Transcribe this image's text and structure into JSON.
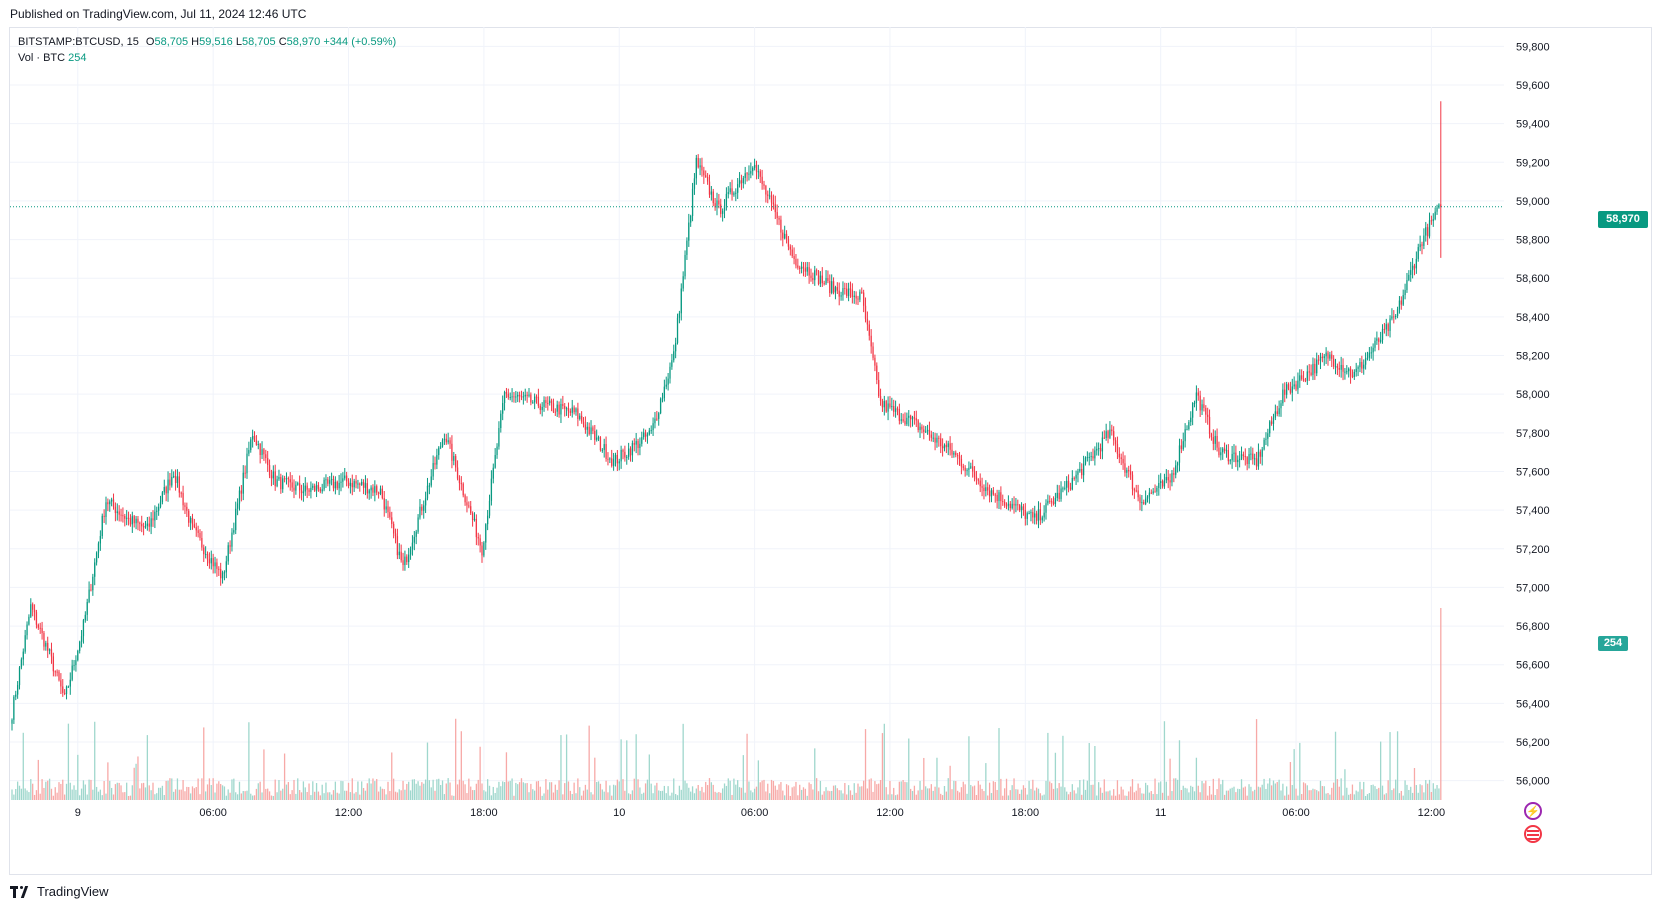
{
  "header": {
    "published": "Published on TradingView.com, Jul 11, 2024 12:46 UTC"
  },
  "legend": {
    "symbol": "BITSTAMP:BTCUSD, 15",
    "open_key": "O",
    "open": "58,705",
    "high_key": "H",
    "high": "59,516",
    "low_key": "L",
    "low": "58,705",
    "close_key": "C",
    "close": "58,970",
    "change": "+344 (+0.59%)",
    "vol_label": "Vol · BTC",
    "vol_value": "254"
  },
  "last_price_label": "58,970",
  "last_volume_label": "254",
  "footer": {
    "brand": "TradingView"
  },
  "icons": {
    "flash": "flash-icon",
    "flag": "us-flag-icon"
  },
  "colors": {
    "up": "#089981",
    "down": "#f23645",
    "vol_up": "#9fd7cd",
    "vol_down": "#f7a9a7",
    "grid": "#f0f3fa"
  },
  "chart_data": {
    "type": "candlestick",
    "title": "BITSTAMP:BTCUSD, 15",
    "y_axis": {
      "min": 55900,
      "max": 59900,
      "ticks": [
        56000,
        56200,
        56400,
        56600,
        56800,
        57000,
        57200,
        57400,
        57600,
        57800,
        58000,
        58200,
        58400,
        58600,
        58800,
        59000,
        59200,
        59400,
        59600,
        59800
      ]
    },
    "x_ticks": [
      "9",
      "06:00",
      "12:00",
      "18:00",
      "10",
      "06:00",
      "12:00",
      "18:00",
      "11",
      "06:00",
      "12:00"
    ],
    "last_close": 58970,
    "series": [
      {
        "name": "BITSTAMP:BTCUSD",
        "interval": "15",
        "anchors": [
          [
            0,
            56350
          ],
          [
            10,
            56900
          ],
          [
            20,
            56650
          ],
          [
            28,
            56420
          ],
          [
            38,
            56800
          ],
          [
            50,
            57450
          ],
          [
            62,
            57350
          ],
          [
            72,
            57300
          ],
          [
            86,
            57600
          ],
          [
            96,
            57300
          ],
          [
            112,
            57050
          ],
          [
            128,
            57800
          ],
          [
            140,
            57550
          ],
          [
            156,
            57500
          ],
          [
            178,
            57550
          ],
          [
            196,
            57500
          ],
          [
            208,
            57100
          ],
          [
            230,
            57800
          ],
          [
            250,
            57200
          ],
          [
            262,
            58000
          ],
          [
            280,
            57950
          ],
          [
            300,
            57900
          ],
          [
            320,
            57650
          ],
          [
            340,
            57800
          ],
          [
            352,
            58200
          ],
          [
            364,
            59200
          ],
          [
            376,
            58950
          ],
          [
            394,
            59200
          ],
          [
            416,
            58700
          ],
          [
            436,
            58550
          ],
          [
            452,
            58500
          ],
          [
            462,
            57950
          ],
          [
            480,
            57850
          ],
          [
            500,
            57700
          ],
          [
            520,
            57500
          ],
          [
            544,
            57350
          ],
          [
            564,
            57550
          ],
          [
            584,
            57800
          ],
          [
            600,
            57450
          ],
          [
            616,
            57550
          ],
          [
            630,
            58000
          ],
          [
            642,
            57700
          ],
          [
            662,
            57650
          ],
          [
            676,
            58000
          ],
          [
            700,
            58200
          ],
          [
            714,
            58100
          ],
          [
            736,
            58400
          ],
          [
            750,
            58800
          ],
          [
            760,
            58970
          ]
        ]
      },
      {
        "name": "Vol · BTC",
        "last": 254
      }
    ]
  }
}
